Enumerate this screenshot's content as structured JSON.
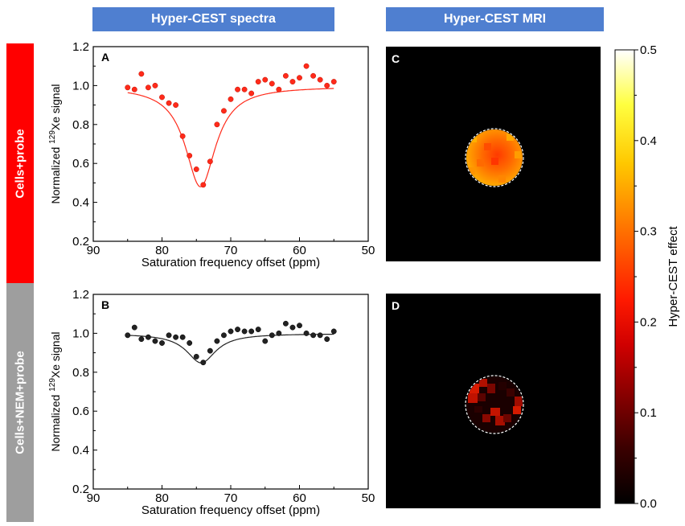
{
  "headers": {
    "spectra": "Hyper-CEST spectra",
    "mri": "Hyper-CEST MRI"
  },
  "rows": [
    {
      "label": "Cells+probe",
      "color": "#ff0000"
    },
    {
      "label": "Cells+NEM+probe",
      "color": "#9e9e9e"
    }
  ],
  "panel_letters": {
    "a": "A",
    "b": "B",
    "c": "C",
    "d": "D"
  },
  "colorbar": {
    "label": "Hyper-CEST effect",
    "ticks": [
      "0.0",
      "0.1",
      "0.2",
      "0.3",
      "0.4",
      "0.5"
    ],
    "range": [
      0.0,
      0.5
    ],
    "colormap": "hot"
  },
  "chart_data": [
    {
      "type": "scatter",
      "panel": "A",
      "title": "",
      "xlabel": "Saturation frequency offset (ppm)",
      "ylabel_pre": "Normalized ",
      "ylabel_sup": "129",
      "ylabel_post": "Xe signal",
      "xlim": [
        90,
        50
      ],
      "ylim": [
        0.2,
        1.2
      ],
      "xticks": [
        "90",
        "80",
        "70",
        "60",
        "50"
      ],
      "yticks": [
        "0.2",
        "0.4",
        "0.6",
        "0.8",
        "1.0",
        "1.2"
      ],
      "color": "#ff2a1a",
      "points": {
        "x": [
          85,
          84,
          83,
          82,
          81,
          80,
          79,
          78,
          77,
          76,
          75,
          74,
          73,
          72,
          71,
          70,
          69,
          68,
          67,
          66,
          65,
          64,
          63,
          62,
          61,
          60,
          59,
          58,
          57,
          56,
          55
        ],
        "y": [
          0.99,
          0.98,
          1.06,
          0.99,
          1.0,
          0.94,
          0.91,
          0.9,
          0.74,
          0.64,
          0.57,
          0.49,
          0.61,
          0.8,
          0.87,
          0.93,
          0.98,
          0.98,
          0.96,
          1.02,
          1.03,
          1.01,
          0.98,
          1.05,
          1.02,
          1.04,
          1.1,
          1.05,
          1.03,
          1.0,
          1.02
        ]
      },
      "fit": {
        "baseline": 0.995,
        "center": 74.4,
        "depth": 0.515,
        "width": 2.7
      }
    },
    {
      "type": "scatter",
      "panel": "B",
      "title": "",
      "xlabel": "Saturation frequency offset (ppm)",
      "ylabel_pre": "Normalized ",
      "ylabel_sup": "129",
      "ylabel_post": "Xe signal",
      "xlim": [
        90,
        50
      ],
      "ylim": [
        0.2,
        1.2
      ],
      "xticks": [
        "90",
        "80",
        "70",
        "60",
        "50"
      ],
      "yticks": [
        "0.2",
        "0.4",
        "0.6",
        "0.8",
        "1.0",
        "1.2"
      ],
      "color": "#222222",
      "points": {
        "x": [
          85,
          84,
          83,
          82,
          81,
          80,
          79,
          78,
          77,
          76,
          75,
          74,
          73,
          72,
          71,
          70,
          69,
          68,
          67,
          66,
          65,
          64,
          63,
          62,
          61,
          60,
          59,
          58,
          57,
          56,
          55
        ],
        "y": [
          0.99,
          1.03,
          0.97,
          0.98,
          0.96,
          0.95,
          0.99,
          0.98,
          0.98,
          0.95,
          0.88,
          0.85,
          0.91,
          0.96,
          0.99,
          1.01,
          1.02,
          1.01,
          1.01,
          1.02,
          0.96,
          0.99,
          1.0,
          1.05,
          1.03,
          1.04,
          1.0,
          0.99,
          0.99,
          0.97,
          1.01
        ]
      },
      "fit": {
        "baseline": 0.998,
        "center": 74.3,
        "depth": 0.15,
        "width": 2.6
      }
    }
  ]
}
